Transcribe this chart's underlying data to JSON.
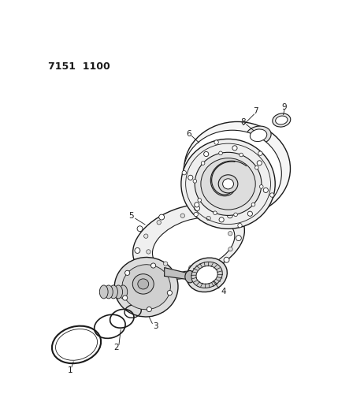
{
  "title": "7151  1100",
  "background_color": "#ffffff",
  "line_color": "#1a1a1a",
  "fig_width": 4.29,
  "fig_height": 5.33,
  "dpi": 100
}
